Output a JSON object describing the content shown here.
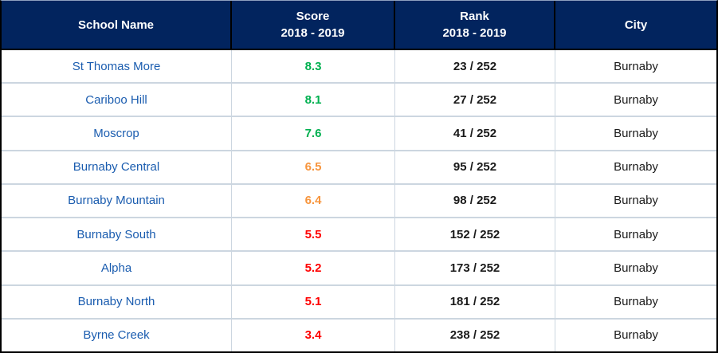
{
  "table": {
    "headers": {
      "school": "School Name",
      "score_line1": "Score",
      "score_line2": "2018 - 2019",
      "rank_line1": "Rank",
      "rank_line2": "2018 - 2019",
      "city": "City"
    },
    "rows": [
      {
        "school": "St Thomas More",
        "score": "8.3",
        "score_color": "#00b050",
        "rank": "23 / 252",
        "city": "Burnaby"
      },
      {
        "school": "Cariboo Hill",
        "score": "8.1",
        "score_color": "#00b050",
        "rank": "27 / 252",
        "city": "Burnaby"
      },
      {
        "school": "Moscrop",
        "score": "7.6",
        "score_color": "#00b050",
        "rank": "41 / 252",
        "city": "Burnaby"
      },
      {
        "school": "Burnaby Central",
        "score": "6.5",
        "score_color": "#f7953d",
        "rank": "95 / 252",
        "city": "Burnaby"
      },
      {
        "school": "Burnaby Mountain",
        "score": "6.4",
        "score_color": "#f7953d",
        "rank": "98 / 252",
        "city": "Burnaby"
      },
      {
        "school": "Burnaby South",
        "score": "5.5",
        "score_color": "#ff0000",
        "rank": "152 / 252",
        "city": "Burnaby"
      },
      {
        "school": "Alpha",
        "score": "5.2",
        "score_color": "#ff0000",
        "rank": "173 / 252",
        "city": "Burnaby"
      },
      {
        "school": "Burnaby North",
        "score": "5.1",
        "score_color": "#ff0000",
        "rank": "181 / 252",
        "city": "Burnaby"
      },
      {
        "school": "Byrne Creek",
        "score": "3.4",
        "score_color": "#ff0000",
        "rank": "238 / 252",
        "city": "Burnaby"
      }
    ]
  },
  "colors": {
    "header_bg": "#02245e",
    "header_text": "#ffffff",
    "school_link_blue": "#1a5caf",
    "score_green": "#00b050",
    "score_orange": "#f7953d",
    "score_red": "#ff0000",
    "grid_line": "#ccd6e0"
  }
}
